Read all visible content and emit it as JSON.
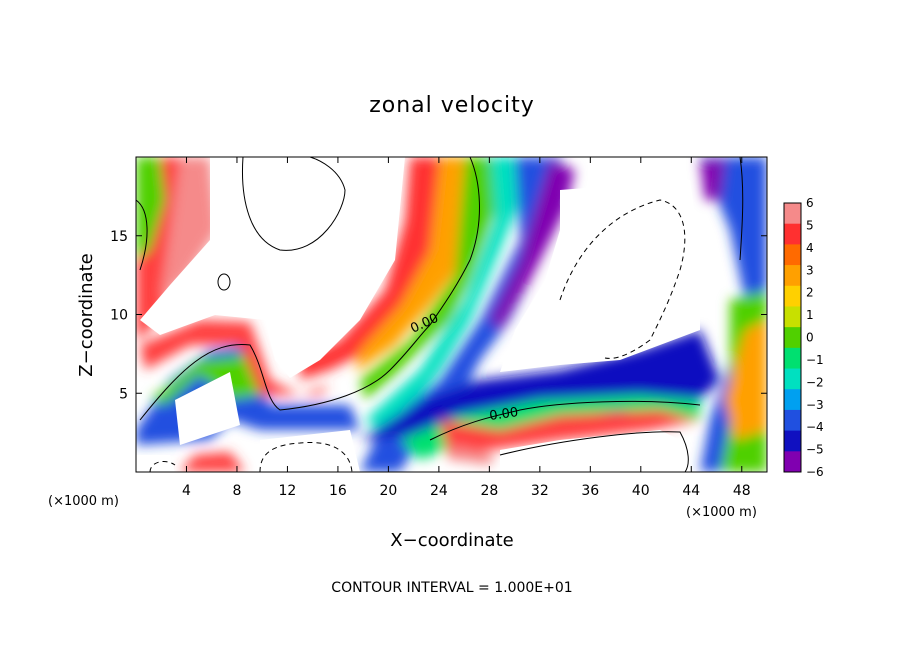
{
  "chart_data": {
    "type": "heatmap",
    "title": "zonal velocity",
    "xlabel": "X−coordinate",
    "ylabel": "Z−coordinate",
    "x_unit_label": "(×1000 m)",
    "x_unit_label_right": "(×1000 m)",
    "xlim": [
      0,
      50
    ],
    "ylim": [
      0,
      20
    ],
    "x_ticks": [
      4,
      8,
      12,
      16,
      20,
      24,
      28,
      32,
      36,
      40,
      44,
      48
    ],
    "y_ticks": [
      5,
      10,
      15
    ],
    "colorbar": {
      "range": [
        -6,
        6
      ],
      "ticks": [
        "6",
        "5",
        "4",
        "3",
        "2",
        "1",
        "0",
        "−1",
        "−2",
        "−3",
        "−4",
        "−5",
        "−6"
      ],
      "colors": [
        "#f58a8a",
        "#ff3030",
        "#ff6a00",
        "#ffa000",
        "#ffd000",
        "#c8e000",
        "#50d000",
        "#00e070",
        "#00e0c0",
        "#00a0f0",
        "#2050e0",
        "#1010c0",
        "#8000b0"
      ]
    },
    "contour_labels": [
      "0.00",
      "0.00"
    ],
    "contour_interval_note": "CONTOUR INTERVAL = 1.000E+01"
  }
}
